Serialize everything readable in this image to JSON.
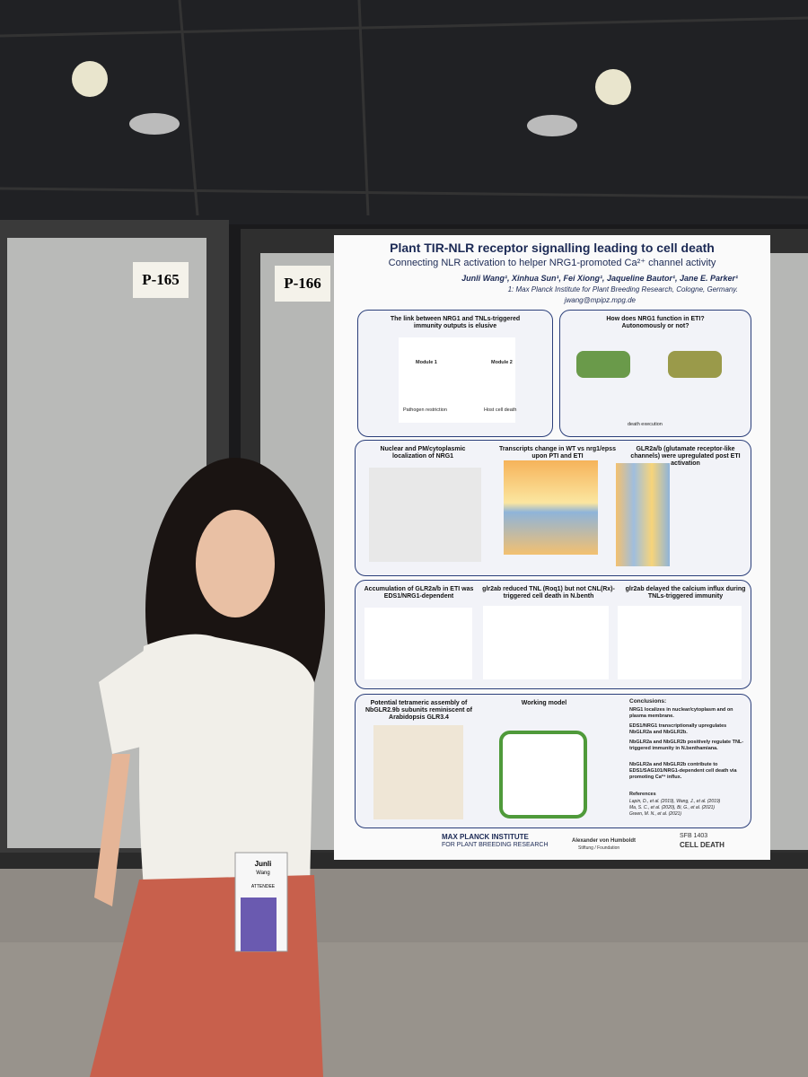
{
  "signs": [
    "P-165",
    "P-166"
  ],
  "poster": {
    "title": "Plant TIR-NLR receptor signalling leading to cell death",
    "subtitle": "Connecting NLR activation to helper NRG1-promoted Ca²⁺ channel activity",
    "authors": "Junli Wang¹, Xinhua Sun¹, Fei Xiong¹, Jaqueline Bautor¹, Jane E. Parker¹",
    "affiliation": "1: Max Planck Institute for Plant Breeding Research, Cologne, Germany.",
    "email": "jwang@mpipz.mpg.de",
    "panels": [
      "The link between NRG1 and TNLs-triggered immunity outputs is elusive",
      "How does NRG1 function in ETI? Autonomously or not?",
      "Nuclear and PM/cytoplasmic localization of NRG1",
      "Transcripts change in WT vs nrg1/epss upon PTI and ETI",
      "GLR2a/b (glutamate receptor-like channels) were upregulated post ETI activation",
      "Accumulation of GLR2a/b in ETI was EDS1/NRG1-dependent",
      "glr2ab reduced TNL (Roq1) but not CNL(Rx)-triggered cell death in N.benth",
      "glr2ab delayed the calcium influx during TNLs-triggered immunity",
      "Potential tetrameric assembly of NbGLR2.9b subunits reminiscent of Arabidopsis GLR3.4",
      "Working model"
    ],
    "diagram_labels": [
      "Module 1",
      "Module 2",
      "Pathogen restriction",
      "Host cell death",
      "death execution"
    ],
    "conclusions": {
      "title": "Conclusions:",
      "items": [
        "NRG1 localizes in nuclear/cytoplasm and on plasma membrane.",
        "EDS1/NRG1 transcriptionally upregulates NbGLR2a and NbGLR2b.",
        "NbGLR2a and NbGLR2b positively regulate TNL-triggered immunity in N.benthamiana.",
        "NbGLR2a and NbGLR2b contribute to EDS1/SAG101/NRG1-dependent cell death via promoting Ca²⁺ influx."
      ]
    },
    "references": {
      "title": "References",
      "items": [
        "Lapin, D., et al. (2019), Wang, J., et al. (2019)",
        "Ma, S. C., et al. (2020), Bi, G., et al. (2021)",
        "Green, M. N., et al. (2021)"
      ]
    },
    "logos": [
      "MAX PLANCK INSTITUTE",
      "FOR PLANT BREEDING RESEARCH",
      "Alexander von Humboldt",
      "Stiftung / Foundation",
      "SFB 1403",
      "CELL DEATH"
    ]
  },
  "badge": {
    "first": "Junli",
    "last": "Wang",
    "role": "ATTENDEE"
  }
}
